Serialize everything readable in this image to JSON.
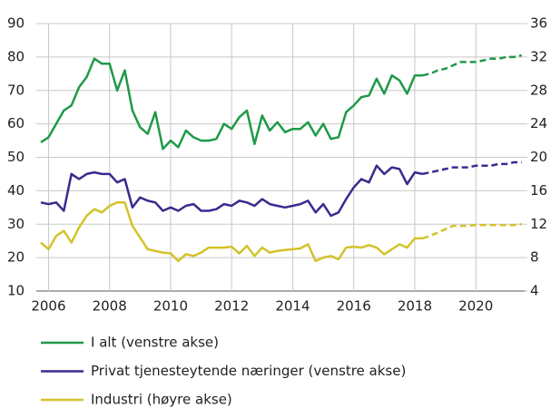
{
  "chart_data": {
    "type": "line",
    "x": [
      2005.75,
      2006,
      2006.25,
      2006.5,
      2006.75,
      2007,
      2007.25,
      2007.5,
      2007.75,
      2008,
      2008.25,
      2008.5,
      2008.75,
      2009,
      2009.25,
      2009.5,
      2009.75,
      2010,
      2010.25,
      2010.5,
      2010.75,
      2011,
      2011.25,
      2011.5,
      2011.75,
      2012,
      2012.25,
      2012.5,
      2012.75,
      2013,
      2013.25,
      2013.5,
      2013.75,
      2014,
      2014.25,
      2014.5,
      2014.75,
      2015,
      2015.25,
      2015.5,
      2015.75,
      2016,
      2016.25,
      2016.5,
      2016.75,
      2017,
      2017.25,
      2017.5,
      2017.75,
      2018,
      2018.25,
      2018.5,
      2018.75,
      2019,
      2019.25,
      2019.5,
      2019.75,
      2020,
      2020.25,
      2020.5,
      2020.75,
      2021,
      2021.25,
      2021.5
    ],
    "xlim": [
      2005.6,
      2021.6
    ],
    "xticks": [
      2006,
      2008,
      2010,
      2012,
      2014,
      2016,
      2018,
      2020
    ],
    "ylim": [
      10,
      90
    ],
    "yticks": [
      10,
      20,
      30,
      40,
      50,
      60,
      70,
      80,
      90
    ],
    "y2lim": [
      4,
      36
    ],
    "y2ticks": [
      4,
      8,
      12,
      16,
      20,
      24,
      28,
      32,
      36
    ],
    "grid": true,
    "dashed_from": 2018.25,
    "series": [
      {
        "name": "I alt (venstre akse)",
        "color": "#1f9a48",
        "values": [
          54.5,
          56,
          60,
          64,
          65.5,
          71,
          74,
          79.5,
          78,
          78,
          70,
          76,
          64,
          59,
          57,
          63.5,
          52.5,
          55,
          53,
          58,
          56,
          55,
          55,
          55.5,
          60,
          58.5,
          62,
          64,
          54,
          62.5,
          58,
          60.5,
          57.5,
          58.5,
          58.5,
          60.5,
          56.5,
          60,
          55.5,
          56,
          63.5,
          65.5,
          68,
          68.5,
          73.5,
          69,
          74.5,
          73,
          69,
          74.5,
          74.5,
          75,
          76,
          76.5,
          77.5,
          78.5,
          78.5,
          78.5,
          79,
          79.5,
          79.5,
          80,
          80,
          80.5
        ]
      },
      {
        "name": "Privat tjenesteytende næringer (venstre akse)",
        "color": "#3b2a8f",
        "values": [
          36.5,
          36,
          36.5,
          34,
          45,
          43.5,
          45,
          45.5,
          45,
          45,
          42.5,
          43.5,
          35,
          38,
          37,
          36.5,
          34,
          35,
          34,
          35.5,
          36,
          34,
          34,
          34.5,
          36,
          35.5,
          37,
          36.5,
          35.5,
          37.5,
          36,
          35.5,
          35,
          35.5,
          36,
          37,
          33.5,
          36,
          32.5,
          33.5,
          37.5,
          41,
          43.5,
          42.5,
          47.5,
          45,
          47,
          46.5,
          42,
          45.5,
          45,
          45.5,
          46,
          46.5,
          47,
          47,
          47,
          47.5,
          47.5,
          47.5,
          48,
          48,
          48.5,
          48.5
        ]
      },
      {
        "name": "Industri (høyre akse)",
        "color": "#d3c32b",
        "axis": "y2",
        "values": [
          9.8,
          9.0,
          10.6,
          11.2,
          9.8,
          11.6,
          13.0,
          13.8,
          13.4,
          14.2,
          14.6,
          14.6,
          11.8,
          10.4,
          9.0,
          8.8,
          8.6,
          8.5,
          7.6,
          8.4,
          8.2,
          8.6,
          9.2,
          9.2,
          9.2,
          9.3,
          8.5,
          9.4,
          8.2,
          9.2,
          8.6,
          8.8,
          8.9,
          9.0,
          9.1,
          9.6,
          7.6,
          8.0,
          8.2,
          7.8,
          9.2,
          9.3,
          9.2,
          9.5,
          9.2,
          8.4,
          9.0,
          9.6,
          9.2,
          10.3,
          10.3,
          10.6,
          11.0,
          11.4,
          11.8,
          11.8,
          11.8,
          11.9,
          11.9,
          11.9,
          11.9,
          11.9,
          11.9,
          12.0
        ]
      }
    ]
  }
}
